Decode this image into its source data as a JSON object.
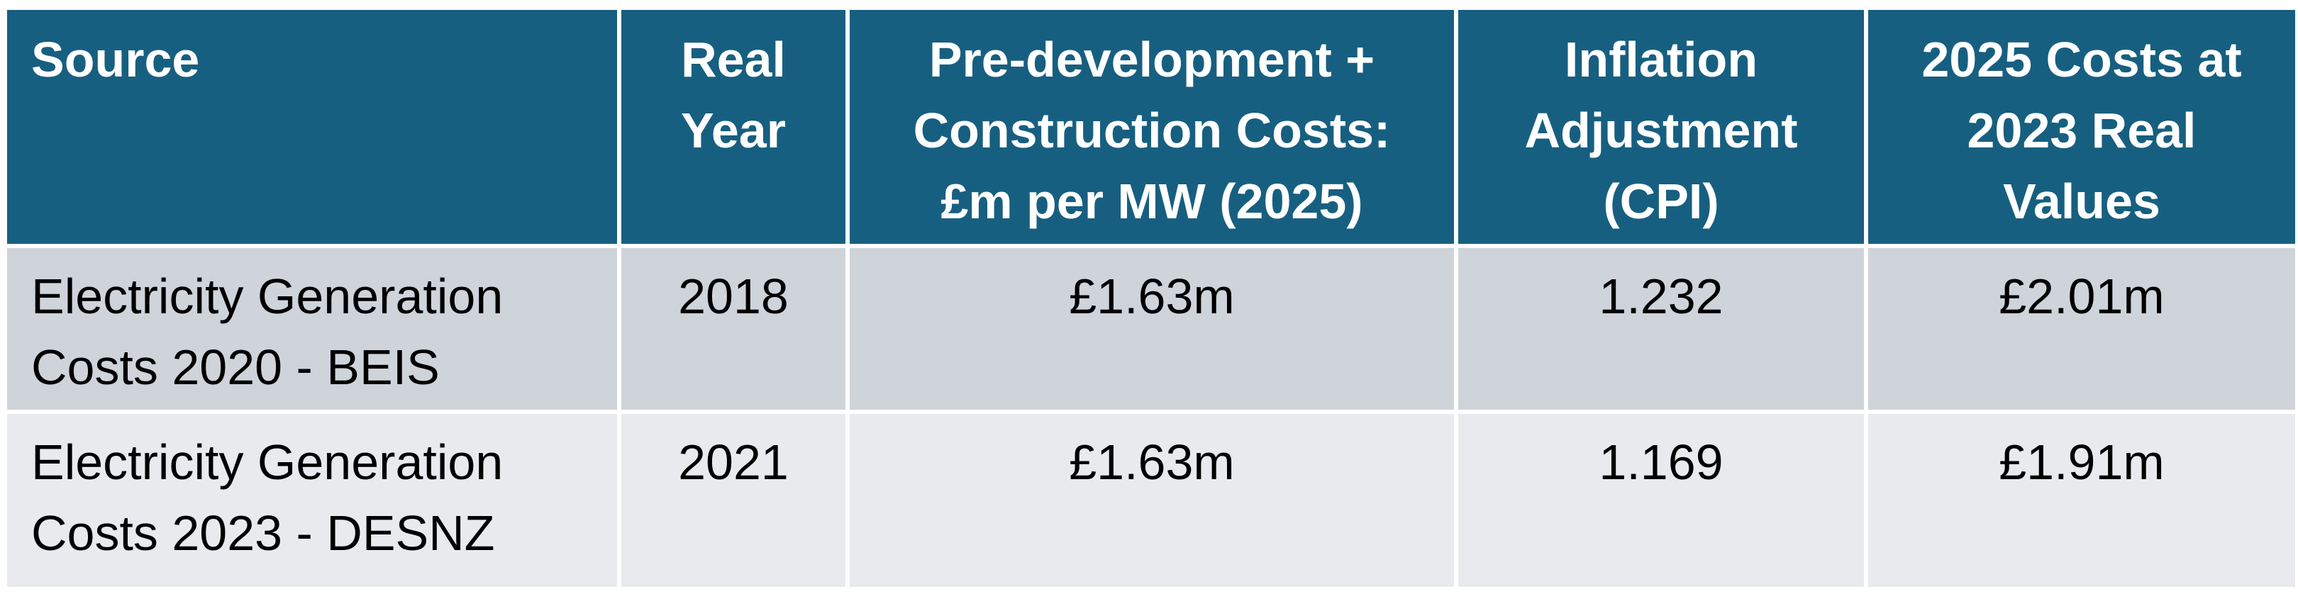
{
  "table": {
    "headers": [
      {
        "lines": [
          "Source"
        ]
      },
      {
        "lines": [
          "Real",
          "Year"
        ]
      },
      {
        "lines": [
          "Pre-development +",
          "Construction Costs:",
          "£m per MW (2025)"
        ]
      },
      {
        "lines": [
          "Inflation",
          "Adjustment",
          "(CPI)"
        ]
      },
      {
        "lines": [
          "2025 Costs at",
          "2023 Real",
          "Values"
        ]
      }
    ],
    "rows": [
      {
        "source_lines": [
          "Electricity Generation",
          "Costs 2020 - BEIS"
        ],
        "real_year": "2018",
        "costs": "£1.63m",
        "inflation": "1.232",
        "real_value": "£2.01m"
      },
      {
        "source_lines": [
          "Electricity Generation",
          "Costs 2023 - DESNZ"
        ],
        "real_year": "2021",
        "costs": "£1.63m",
        "inflation": "1.169",
        "real_value": "£1.91m"
      }
    ]
  },
  "colors": {
    "header_bg": "#175f80",
    "row_a_bg": "#cfd3da",
    "row_b_bg": "#e8eaed",
    "border": "#ffffff"
  }
}
